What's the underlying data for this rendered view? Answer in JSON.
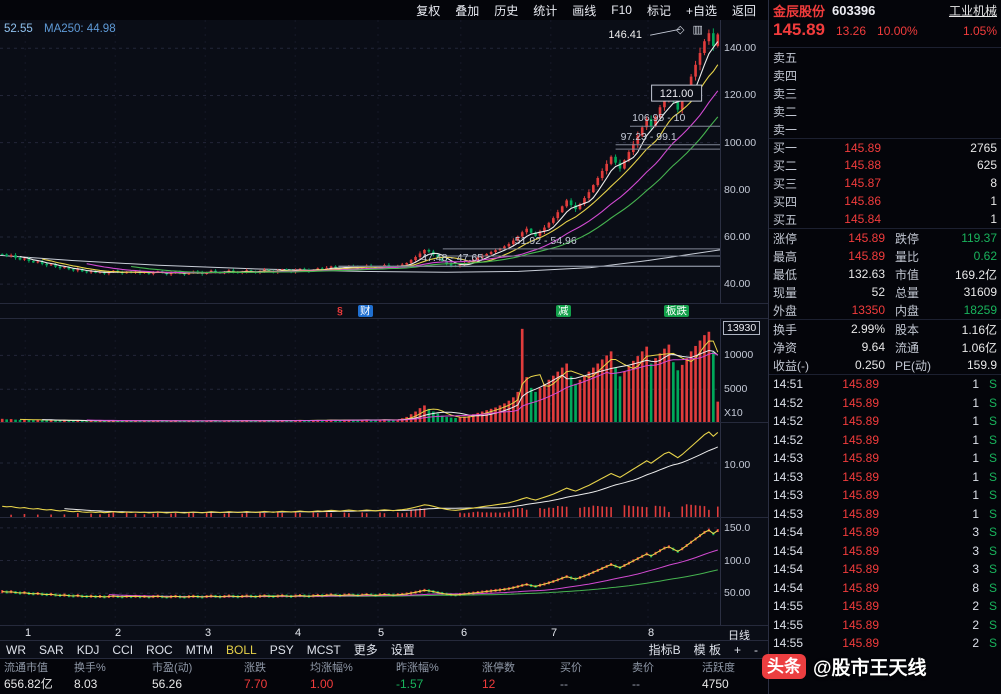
{
  "topbar": {
    "items": [
      "复权",
      "叠加",
      "历史",
      "统计",
      "画线",
      "F10",
      "标记",
      "+自选",
      "返回"
    ]
  },
  "chart_info": {
    "value": "52.55",
    "ma_label": "MA250: 44.98"
  },
  "chart_icons": [
    {
      "name": "diamond-icon",
      "glyph": "◇"
    },
    {
      "name": "panes-icon",
      "glyph": "▥"
    }
  ],
  "markers": [
    {
      "text": "§",
      "style": "plain-red",
      "x": 0.465
    },
    {
      "text": "财",
      "style": "blue-box",
      "x": 0.497
    },
    {
      "text": "减",
      "style": "green-box",
      "x": 0.772
    },
    {
      "text": "板跌",
      "style": "green-box",
      "x": 0.922
    }
  ],
  "xaxis": {
    "ticks": [
      "1",
      "2",
      "3",
      "4",
      "5",
      "6",
      "7",
      "8"
    ],
    "fractions": [
      0.035,
      0.16,
      0.285,
      0.41,
      0.525,
      0.64,
      0.765,
      0.9
    ],
    "period": "日线"
  },
  "tabbar": {
    "items": [
      "WR",
      "SAR",
      "KDJ",
      "CCI",
      "ROC",
      "MTM",
      "BOLL",
      "PSY",
      "MCST",
      "更多",
      "设置"
    ],
    "active": "BOLL",
    "right_items": [
      "指标B",
      "模 板",
      "+",
      "-"
    ]
  },
  "footer": {
    "cells": [
      {
        "label": "流通市值",
        "value": "656.82亿",
        "color": "white"
      },
      {
        "label": "换手%",
        "value": "8.03",
        "color": "white"
      },
      {
        "label": "市盈(动)",
        "value": "56.26",
        "color": "white"
      },
      {
        "label": "涨跌",
        "value": "7.70",
        "color": "red"
      },
      {
        "label": "均涨幅%",
        "value": "1.00",
        "color": "red"
      },
      {
        "label": "昨涨幅%",
        "value": "-1.57",
        "color": "green"
      },
      {
        "label": "涨停数",
        "value": "12",
        "color": "red"
      },
      {
        "label": "买价",
        "value": "--",
        "color": "gray"
      },
      {
        "label": "卖价",
        "value": "--",
        "color": "gray"
      },
      {
        "label": "活跃度",
        "value": "4750",
        "color": "white"
      }
    ]
  },
  "watermark": {
    "logo": "头条",
    "handle": "@股市王天线"
  },
  "quote_panel": {
    "name": "金辰股份",
    "code": "603396",
    "industry": "工业机械",
    "price": "145.89",
    "change": "13.26",
    "change_pct": "10.00%",
    "extra_pct": "1.05%",
    "asks": [
      {
        "label": "卖五",
        "price": "",
        "vol": ""
      },
      {
        "label": "卖四",
        "price": "",
        "vol": ""
      },
      {
        "label": "卖三",
        "price": "",
        "vol": ""
      },
      {
        "label": "卖二",
        "price": "",
        "vol": ""
      },
      {
        "label": "卖一",
        "price": "",
        "vol": ""
      }
    ],
    "bids": [
      {
        "label": "买一",
        "price": "145.89",
        "vol": "2765"
      },
      {
        "label": "买二",
        "price": "145.88",
        "vol": "625"
      },
      {
        "label": "买三",
        "price": "145.87",
        "vol": "8"
      },
      {
        "label": "买四",
        "price": "145.86",
        "vol": "1"
      },
      {
        "label": "买五",
        "price": "145.84",
        "vol": "1"
      }
    ],
    "stats": [
      {
        "l1": "涨停",
        "v1": "145.89",
        "c1": "red",
        "l2": "跌停",
        "v2": "119.37",
        "c2": "green"
      },
      {
        "l1": "最高",
        "v1": "145.89",
        "c1": "red",
        "l2": "量比",
        "v2": "0.62",
        "c2": "green"
      },
      {
        "l1": "最低",
        "v1": "132.63",
        "c1": "white",
        "l2": "市值",
        "v2": "169.2亿",
        "c2": "white"
      },
      {
        "l1": "现量",
        "v1": "52",
        "c1": "white",
        "l2": "总量",
        "v2": "31609",
        "c2": "white"
      },
      {
        "l1": "外盘",
        "v1": "13350",
        "c1": "red",
        "l2": "内盘",
        "v2": "18259",
        "c2": "green"
      }
    ],
    "stats2": [
      {
        "l1": "换手",
        "v1": "2.99%",
        "c1": "white",
        "l2": "股本",
        "v2": "1.16亿",
        "c2": "white"
      },
      {
        "l1": "净资",
        "v1": "9.64",
        "c1": "white",
        "l2": "流通",
        "v2": "1.06亿",
        "c2": "white"
      },
      {
        "l1": "收益(-)",
        "v1": "0.250",
        "c1": "white",
        "l2": "PE(动)",
        "v2": "159.9",
        "c2": "white"
      }
    ],
    "ticks": [
      {
        "time": "14:51",
        "price": "145.89",
        "vol": "1",
        "side": "S"
      },
      {
        "time": "14:52",
        "price": "145.89",
        "vol": "1",
        "side": "S"
      },
      {
        "time": "14:52",
        "price": "145.89",
        "vol": "1",
        "side": "S"
      },
      {
        "time": "14:52",
        "price": "145.89",
        "vol": "1",
        "side": "S"
      },
      {
        "time": "14:53",
        "price": "145.89",
        "vol": "1",
        "side": "S"
      },
      {
        "time": "14:53",
        "price": "145.89",
        "vol": "1",
        "side": "S"
      },
      {
        "time": "14:53",
        "price": "145.89",
        "vol": "1",
        "side": "S"
      },
      {
        "time": "14:53",
        "price": "145.89",
        "vol": "1",
        "side": "S"
      },
      {
        "time": "14:54",
        "price": "145.89",
        "vol": "3",
        "side": "S"
      },
      {
        "time": "14:54",
        "price": "145.89",
        "vol": "3",
        "side": "S"
      },
      {
        "time": "14:54",
        "price": "145.89",
        "vol": "3",
        "side": "S"
      },
      {
        "time": "14:54",
        "price": "145.89",
        "vol": "8",
        "side": "S"
      },
      {
        "time": "14:55",
        "price": "145.89",
        "vol": "2",
        "side": "S"
      },
      {
        "time": "14:55",
        "price": "145.89",
        "vol": "2",
        "side": "S"
      },
      {
        "time": "14:55",
        "price": "145.89",
        "vol": "2",
        "side": "S"
      }
    ]
  },
  "chart_data": {
    "type": "candlestick",
    "title": "金辰股份 603396 日线",
    "ylim": [
      32,
      152
    ],
    "y_ticks": [
      {
        "label": "140.00",
        "value": 140
      },
      {
        "label": "120.00",
        "value": 120
      },
      {
        "label": "100.00",
        "value": 100
      },
      {
        "label": "80.00",
        "value": 80
      },
      {
        "label": "60.00",
        "value": 60
      },
      {
        "label": "40.00",
        "value": 40
      }
    ],
    "closes": [
      52.6,
      51.9,
      52.3,
      51.2,
      50.4,
      50.9,
      49.8,
      49.2,
      49.6,
      48.6,
      48.0,
      48.4,
      47.4,
      46.8,
      47.2,
      46.3,
      45.8,
      46.4,
      45.4,
      45.0,
      45.5,
      44.8,
      45.2,
      44.5,
      45.0,
      45.7,
      45.1,
      44.6,
      45.3,
      44.9,
      45.4,
      44.7,
      45.1,
      44.4,
      44.9,
      45.5,
      44.8,
      44.2,
      44.7,
      45.3,
      44.6,
      44.1,
      44.8,
      45.4,
      44.9,
      44.3,
      45.0,
      45.7,
      45.2,
      44.6,
      45.1,
      45.8,
      45.3,
      44.7,
      45.2,
      45.9,
      45.4,
      44.8,
      45.5,
      46.1,
      45.6,
      45.0,
      45.7,
      46.3,
      45.8,
      45.2,
      45.9,
      46.5,
      46.0,
      45.4,
      46.1,
      46.7,
      46.2,
      46.9,
      47.5,
      47.0,
      46.4,
      47.1,
      47.7,
      47.2,
      46.6,
      47.3,
      47.9,
      47.4,
      46.8,
      47.5,
      48.1,
      47.6,
      47.0,
      47.7,
      48.3,
      49.0,
      50.2,
      51.5,
      53.0,
      54.5,
      53.8,
      52.5,
      51.0,
      49.8,
      48.6,
      47.9,
      47.5,
      48.2,
      48.8,
      49.5,
      50.3,
      51.2,
      52.0,
      52.8,
      53.6,
      54.4,
      55.2,
      56.0,
      57.0,
      58.5,
      60.2,
      62.0,
      63.5,
      61.8,
      60.5,
      62.3,
      64.0,
      66.0,
      68.0,
      70.5,
      73.0,
      75.5,
      73.5,
      71.8,
      74.0,
      76.5,
      79.0,
      82.0,
      85.0,
      88.0,
      91.0,
      94.0,
      91.5,
      89.0,
      92.5,
      96.0,
      99.5,
      103.0,
      106.5,
      110.0,
      107.0,
      111.0,
      115.0,
      119.0,
      121.0,
      117.5,
      114.0,
      118.0,
      123.0,
      128.0,
      133.0,
      138.0,
      143.0,
      146.4,
      141.0,
      145.9
    ],
    "volumes": [
      620,
      540,
      580,
      500,
      460,
      520,
      480,
      430,
      470,
      420,
      400,
      440,
      380,
      360,
      410,
      350,
      330,
      390,
      340,
      320,
      360,
      310,
      350,
      300,
      340,
      380,
      330,
      300,
      350,
      320,
      340,
      300,
      330,
      290,
      320,
      360,
      310,
      280,
      320,
      350,
      300,
      270,
      320,
      350,
      310,
      280,
      330,
      370,
      320,
      290,
      320,
      380,
      330,
      300,
      340,
      390,
      340,
      310,
      360,
      400,
      350,
      320,
      370,
      410,
      360,
      330,
      380,
      420,
      370,
      340,
      390,
      430,
      380,
      440,
      480,
      420,
      380,
      450,
      490,
      430,
      400,
      460,
      500,
      440,
      410,
      470,
      520,
      460,
      420,
      480,
      700,
      900,
      1300,
      1700,
      2200,
      2600,
      2100,
      1700,
      1400,
      1100,
      900,
      800,
      750,
      850,
      950,
      1100,
      1300,
      1500,
      1700,
      1900,
      2100,
      2300,
      2600,
      2900,
      3300,
      3800,
      4600,
      13930,
      6800,
      5200,
      4600,
      5200,
      5800,
      6400,
      7000,
      7600,
      8200,
      8800,
      6900,
      5800,
      6400,
      7000,
      7600,
      8200,
      8800,
      9400,
      10000,
      10600,
      8200,
      6900,
      7600,
      8400,
      9200,
      9900,
      10600,
      11300,
      8800,
      9600,
      10300,
      11000,
      11600,
      9000,
      7800,
      8600,
      9600,
      10600,
      11400,
      12200,
      13000,
      13500,
      10500,
      3161
    ],
    "ma250_points": [
      [
        0,
        52.2
      ],
      [
        0.1,
        50.0
      ],
      [
        0.22,
        48.0
      ],
      [
        0.35,
        46.5
      ],
      [
        0.5,
        45.4
      ],
      [
        0.62,
        45.0
      ],
      [
        0.72,
        45.4
      ],
      [
        0.82,
        47.0
      ],
      [
        0.9,
        50.0
      ],
      [
        1,
        54.5
      ]
    ],
    "annotations": [
      {
        "kind": "peak",
        "text": "146.41",
        "price": 146.41,
        "x": 0.845
      },
      {
        "kind": "box",
        "text": "121.00",
        "price": 121.0,
        "x": 0.905
      },
      {
        "kind": "band",
        "text": "106.95 - 10",
        "p1": 106.95,
        "x0": 0.875,
        "lx": 0.878
      },
      {
        "kind": "band",
        "text": "97.23 - 99.1",
        "p1": 97.23,
        "p2": 99.1,
        "x0": 0.855,
        "lx": 0.862
      },
      {
        "kind": "band",
        "text": "51.92 - 54.96",
        "p1": 51.92,
        "p2": 54.96,
        "x0": 0.615,
        "lx": 0.715
      },
      {
        "kind": "band",
        "text": "47.48 - 47.65",
        "p1": 47.48,
        "p2": 47.65,
        "x0": 0.47,
        "lx": 0.585
      }
    ],
    "volume_scale": {
      "current": "13930",
      "gridlines": [
        {
          "label": "10000",
          "value": 10000
        },
        {
          "label": "5000",
          "value": 5000
        }
      ],
      "unit": "X10",
      "max": 14500
    },
    "ind1": {
      "label": "10.00"
    },
    "ind2": {
      "ylim": [
        0,
        165
      ],
      "gridlines": [
        {
          "label": "150.0",
          "value": 150
        },
        {
          "label": "100.0",
          "value": 100
        },
        {
          "label": "50.00",
          "value": 50
        }
      ]
    }
  }
}
